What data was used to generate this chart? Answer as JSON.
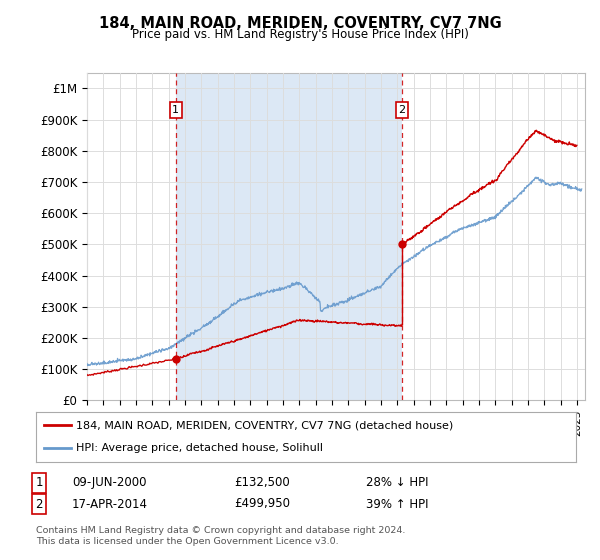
{
  "title": "184, MAIN ROAD, MERIDEN, COVENTRY, CV7 7NG",
  "subtitle": "Price paid vs. HM Land Registry's House Price Index (HPI)",
  "ylabel_ticks": [
    "£0",
    "£100K",
    "£200K",
    "£300K",
    "£400K",
    "£500K",
    "£600K",
    "£700K",
    "£800K",
    "£900K",
    "£1M"
  ],
  "ytick_values": [
    0,
    100000,
    200000,
    300000,
    400000,
    500000,
    600000,
    700000,
    800000,
    900000,
    1000000
  ],
  "ylim": [
    0,
    1050000
  ],
  "xlim_start": 1995.0,
  "xlim_end": 2025.5,
  "legend_line1": "184, MAIN ROAD, MERIDEN, COVENTRY, CV7 7NG (detached house)",
  "legend_line2": "HPI: Average price, detached house, Solihull",
  "annotation1_label": "1",
  "annotation1_date": "09-JUN-2000",
  "annotation1_price": "£132,500",
  "annotation1_hpi": "28% ↓ HPI",
  "annotation2_label": "2",
  "annotation2_date": "17-APR-2014",
  "annotation2_price": "£499,950",
  "annotation2_hpi": "39% ↑ HPI",
  "footer": "Contains HM Land Registry data © Crown copyright and database right 2024.\nThis data is licensed under the Open Government Licence v3.0.",
  "sale1_x": 2000.44,
  "sale1_y": 132500,
  "sale2_x": 2014.29,
  "sale2_y": 499950,
  "vline1_x": 2000.44,
  "vline2_x": 2014.29,
  "red_line_color": "#cc0000",
  "blue_line_color": "#6699cc",
  "vline_color": "#cc0000",
  "grid_color": "#dddddd",
  "background_color": "#ffffff",
  "plot_bg_color": "#ffffff",
  "shade_color": "#dce8f5"
}
